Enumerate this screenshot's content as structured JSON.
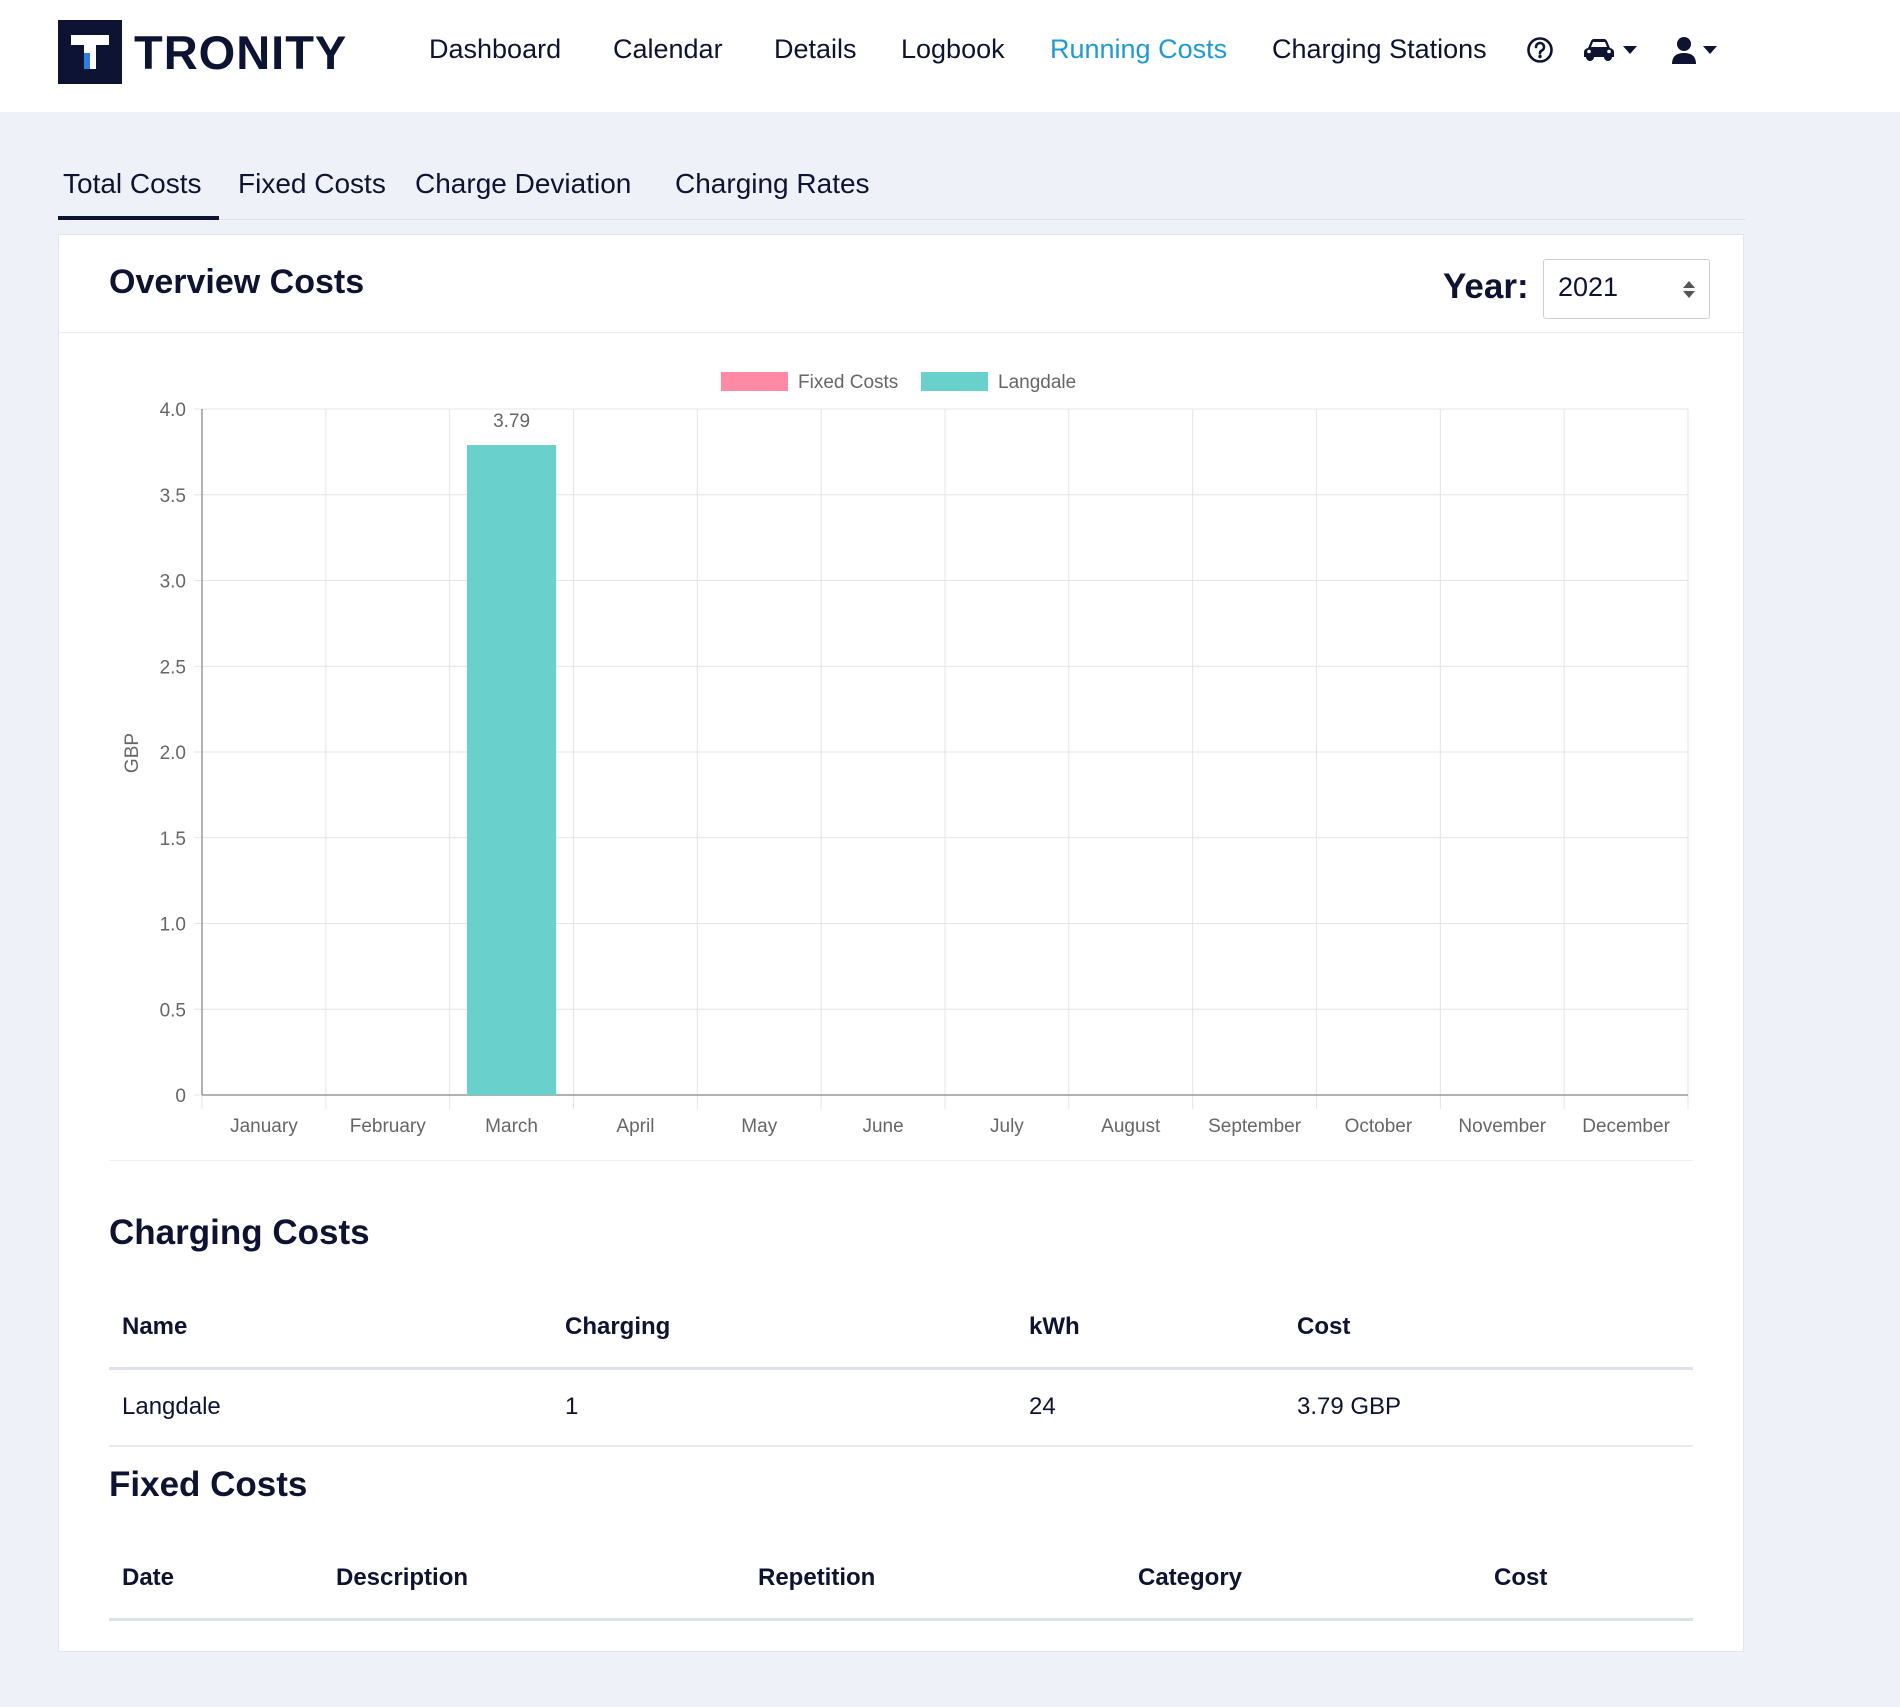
{
  "brand": {
    "name": "TRONITY"
  },
  "nav": {
    "items": [
      {
        "label": "Dashboard",
        "active": false
      },
      {
        "label": "Calendar",
        "active": false
      },
      {
        "label": "Details",
        "active": false
      },
      {
        "label": "Logbook",
        "active": false
      },
      {
        "label": "Running Costs",
        "active": true
      },
      {
        "label": "Charging Stations",
        "active": false
      }
    ],
    "icons": [
      "help-circle-icon",
      "car-icon",
      "user-icon"
    ],
    "active_color": "#1e9ad6"
  },
  "tabs": [
    {
      "label": "Total Costs",
      "active": true
    },
    {
      "label": "Fixed Costs",
      "active": false
    },
    {
      "label": "Charge Deviation",
      "active": false
    },
    {
      "label": "Charging Rates",
      "active": false
    }
  ],
  "overview": {
    "title": "Overview Costs",
    "year_label": "Year:",
    "year_value": "2021"
  },
  "chart_data": {
    "type": "bar",
    "categories": [
      "January",
      "February",
      "March",
      "April",
      "May",
      "June",
      "July",
      "August",
      "September",
      "October",
      "November",
      "December"
    ],
    "series": [
      {
        "name": "Fixed Costs",
        "color": "#ff8aa6",
        "values": [
          0,
          0,
          0,
          0,
          0,
          0,
          0,
          0,
          0,
          0,
          0,
          0
        ]
      },
      {
        "name": "Langdale",
        "color": "#6ad0cc",
        "values": [
          0,
          0,
          3.79,
          0,
          0,
          0,
          0,
          0,
          0,
          0,
          0,
          0
        ]
      }
    ],
    "data_labels": [
      {
        "category": "March",
        "text": "3.79"
      }
    ],
    "ylabel": "GBP",
    "xlabel": "",
    "ylim": [
      0,
      4.0
    ],
    "yticks": [
      "0",
      "0.5",
      "1.0",
      "1.5",
      "2.0",
      "2.5",
      "3.0",
      "3.5",
      "4.0"
    ],
    "stacked": true,
    "grid": true,
    "legend": "top-center"
  },
  "charging_costs": {
    "title": "Charging Costs",
    "headers": [
      "Name",
      "Charging",
      "kWh",
      "Cost"
    ],
    "rows": [
      [
        "Langdale",
        "1",
        "24",
        "3.79 GBP"
      ]
    ]
  },
  "fixed_costs": {
    "title": "Fixed Costs",
    "headers": [
      "Date",
      "Description",
      "Repetition",
      "Category",
      "Cost"
    ],
    "rows": []
  }
}
